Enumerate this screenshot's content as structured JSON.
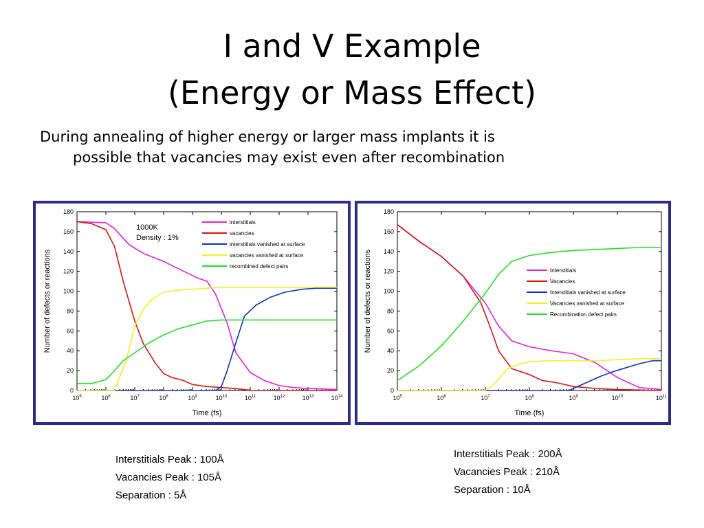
{
  "slide": {
    "title_line1": "I and V Example",
    "title_line2": "(Energy or Mass Effect)",
    "bullet_line1": "During annealing of higher energy or larger mass implants it is",
    "bullet_line2": "possible that vacancies may exist even after recombination"
  },
  "captions": [
    [
      "Interstitials Peak : 100Å",
      "Vacancies Peak : 105Å",
      "Separation : 5Å"
    ],
    [
      "Interstitials Peak : 200Å",
      "Vacancies Peak : 210Å",
      "Separation : 10Å"
    ]
  ],
  "chart_data": [
    {
      "type": "line",
      "xlabel": "Time (fs)",
      "ylabel": "Number of defects or reactions",
      "x_scale": "log",
      "xlim_exp": [
        5,
        14
      ],
      "ylim": [
        0,
        180
      ],
      "y_ticks": [
        "0",
        "20",
        "40",
        "60",
        "80",
        "100",
        "120",
        "140",
        "160",
        "180"
      ],
      "x_tick_exponents": [
        "5",
        "6",
        "7",
        "8",
        "9",
        "10",
        "11",
        "12",
        "13",
        "14"
      ],
      "annotation": [
        "1000K",
        "Density : 1%"
      ],
      "legend_position": "top-center",
      "series": [
        {
          "name": "interstitials",
          "color": "#e020e0",
          "x_exp": [
            5,
            6,
            6.3,
            6.8,
            7.3,
            8,
            8.7,
            9.2,
            9.5,
            9.8,
            10.2,
            10.5,
            11,
            11.5,
            12,
            12.5,
            13,
            14
          ],
          "y": [
            170,
            169,
            163,
            147,
            138,
            130,
            120,
            113,
            110,
            97,
            68,
            38,
            18,
            10,
            5,
            3,
            2,
            1
          ]
        },
        {
          "name": "vacancies",
          "color": "#dd1111",
          "x_exp": [
            5,
            5.5,
            6,
            6.3,
            6.6,
            7,
            7.3,
            7.7,
            8,
            8.3,
            8.7,
            9,
            9.5,
            10,
            10.5,
            11,
            14
          ],
          "y": [
            170,
            168,
            162,
            145,
            110,
            70,
            47,
            28,
            17,
            13,
            10,
            6,
            4,
            3,
            2,
            0,
            0
          ]
        },
        {
          "name": "interstitials vanished at surface",
          "color": "#1030c0",
          "x_exp": [
            5,
            9.8,
            10,
            10.2,
            10.5,
            10.8,
            11.2,
            11.7,
            12.2,
            12.8,
            13.3,
            14
          ],
          "y": [
            0,
            0,
            4,
            20,
            48,
            75,
            86,
            94,
            99,
            102,
            103,
            103
          ]
        },
        {
          "name": "vacancies vanished at surface",
          "color": "#f0f020",
          "x_exp": [
            5,
            6.3,
            6.7,
            7,
            7.3,
            7.6,
            8,
            8.5,
            9,
            9.5,
            10,
            11,
            12,
            14
          ],
          "y": [
            0,
            0,
            30,
            65,
            82,
            92,
            99,
            101,
            102,
            103,
            104,
            104,
            104,
            104
          ]
        },
        {
          "name": "recombined defect pairs",
          "color": "#20e020",
          "x_exp": [
            5,
            5.5,
            6,
            6.3,
            6.6,
            7,
            7.5,
            8,
            8.5,
            9,
            9.5,
            10,
            11,
            12,
            14
          ],
          "y": [
            7,
            7,
            11,
            20,
            30,
            38,
            48,
            56,
            62,
            66,
            70,
            71,
            71,
            71,
            71
          ]
        }
      ]
    },
    {
      "type": "line",
      "xlabel": "Time (fs)",
      "ylabel": "Number of defects or reactions",
      "x_scale": "log",
      "xlim_exp": [
        5,
        11
      ],
      "ylim": [
        0,
        180
      ],
      "y_ticks": [
        "0",
        "20",
        "40",
        "60",
        "80",
        "100",
        "120",
        "140",
        "160",
        "180"
      ],
      "x_tick_exponents": [
        "5",
        "6",
        "7",
        "8",
        "9",
        "10",
        "11"
      ],
      "legend_position": "center-right",
      "series": [
        {
          "name": "Interstitials",
          "color": "#e020e0",
          "x_exp": [
            5,
            5.5,
            6,
            6.5,
            7,
            7.3,
            7.6,
            8,
            8.5,
            9,
            9.5,
            10,
            10.5,
            11
          ],
          "y": [
            167,
            150,
            135,
            115,
            88,
            65,
            50,
            44,
            40,
            37,
            28,
            13,
            3,
            1
          ]
        },
        {
          "name": "Vacancies",
          "color": "#dd1111",
          "x_exp": [
            5,
            5.5,
            6,
            6.5,
            6.9,
            7.1,
            7.3,
            7.6,
            8,
            8.3,
            8.6,
            9,
            9.5,
            10,
            11
          ],
          "y": [
            167,
            150,
            135,
            115,
            88,
            65,
            40,
            22,
            16,
            10,
            8,
            4,
            2,
            1,
            0
          ]
        },
        {
          "name": "Interstitials vanished at surface",
          "color": "#1030c0",
          "x_exp": [
            5,
            8.9,
            9,
            9.3,
            9.6,
            9.9,
            10.2,
            10.5,
            10.8,
            11
          ],
          "y": [
            0,
            0,
            2,
            8,
            14,
            19,
            23,
            27,
            30,
            30
          ]
        },
        {
          "name": "Vacancies vanished at surface",
          "color": "#f0f020",
          "x_exp": [
            5,
            7,
            7.2,
            7.5,
            7.8,
            8,
            8.5,
            9,
            9.5,
            10,
            10.5,
            11
          ],
          "y": [
            0,
            0,
            6,
            22,
            27,
            29,
            30,
            30,
            30,
            31,
            32,
            32
          ]
        },
        {
          "name": "Recombination defect pairs",
          "color": "#20e020",
          "x_exp": [
            5,
            5.5,
            6,
            6.5,
            7,
            7.3,
            7.6,
            8,
            8.5,
            9,
            9.5,
            10,
            10.5,
            11
          ],
          "y": [
            10,
            25,
            45,
            70,
            98,
            117,
            130,
            136,
            139,
            141,
            142,
            143,
            144,
            144
          ]
        }
      ]
    }
  ]
}
